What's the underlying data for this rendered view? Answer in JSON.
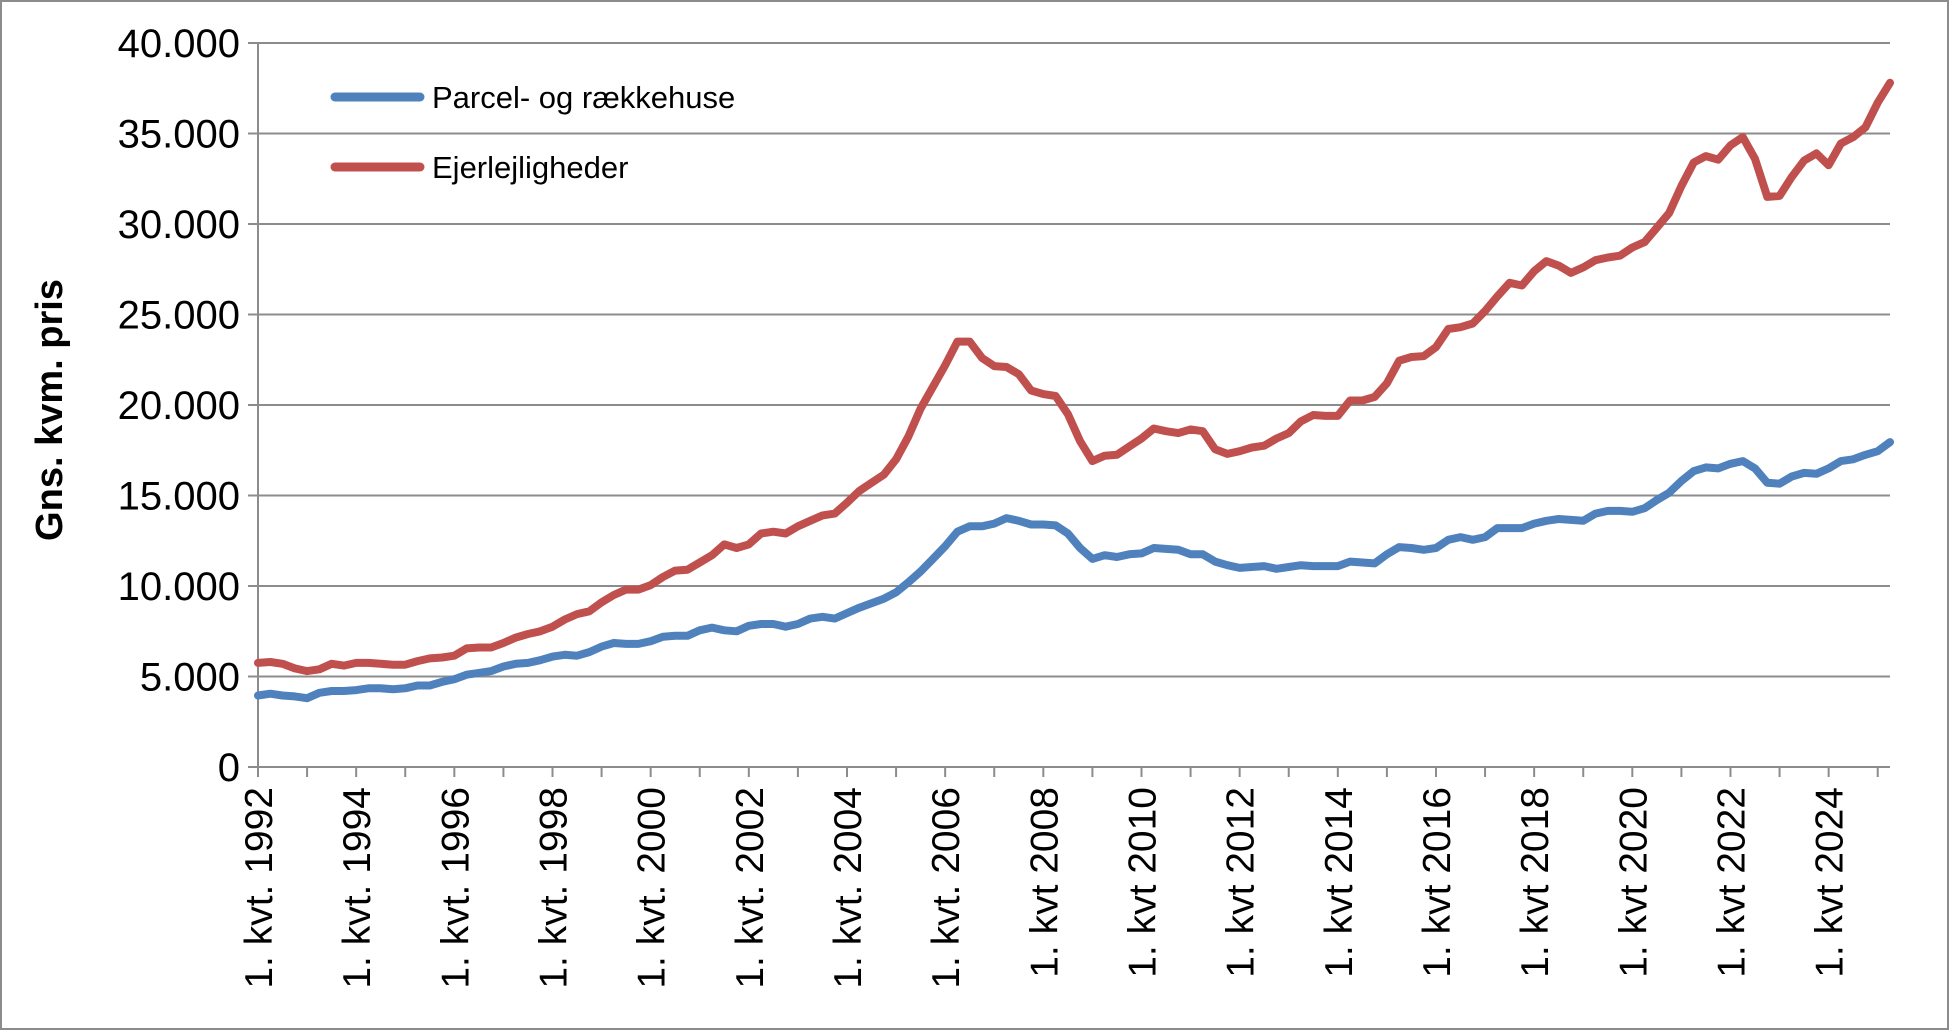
{
  "chart_data": {
    "type": "line",
    "title": "",
    "xlabel": "",
    "ylabel": "Gns. kvm. pris",
    "ylim": [
      0,
      40000
    ],
    "y_ticks": [
      0,
      5000,
      10000,
      15000,
      20000,
      25000,
      30000,
      35000,
      40000
    ],
    "y_tick_labels": [
      "0",
      "5.000",
      "10.000",
      "15.000",
      "20.000",
      "25.000",
      "30.000",
      "35.000",
      "40.000"
    ],
    "grid": true,
    "legend_position": "top-left",
    "x_start": "1. kvt. 1992",
    "x_tick_labels": [
      "1. kvt. 1992",
      "1. kvt. 1994",
      "1. kvt. 1996",
      "1. kvt. 1998",
      "1. kvt. 2000",
      "1. kvt. 2002",
      "1. kvt. 2004",
      "1. kvt. 2006",
      "1. kvt 2008",
      "1. kvt 2010",
      "1. kvt 2012",
      "1. kvt 2014",
      "1. kvt 2016",
      "1. kvt 2018",
      "1. kvt 2020",
      "1. kvt 2022",
      "1. kvt 2024"
    ],
    "series": [
      {
        "name": "Parcel- og rækkehuse",
        "color": "#4F81BD",
        "values": [
          3950,
          4050,
          3950,
          3900,
          3800,
          4100,
          4200,
          4200,
          4250,
          4350,
          4350,
          4300,
          4350,
          4500,
          4500,
          4700,
          4850,
          5100,
          5200,
          5300,
          5550,
          5700,
          5750,
          5900,
          6100,
          6200,
          6150,
          6350,
          6650,
          6850,
          6800,
          6800,
          6950,
          7200,
          7250,
          7250,
          7550,
          7700,
          7550,
          7500,
          7800,
          7900,
          7900,
          7750,
          7900,
          8200,
          8300,
          8200,
          8500,
          8800,
          9050,
          9300,
          9650,
          10200,
          10800,
          11500,
          12200,
          13000,
          13300,
          13300,
          13450,
          13750,
          13600,
          13400,
          13400,
          13350,
          12900,
          12100,
          11500,
          11700,
          11600,
          11750,
          11800,
          12100,
          12050,
          12000,
          11750,
          11750,
          11350,
          11150,
          11000,
          11050,
          11100,
          10950,
          11050,
          11150,
          11100,
          11100,
          11100,
          11350,
          11300,
          11250,
          11750,
          12150,
          12100,
          12000,
          12100,
          12550,
          12700,
          12550,
          12700,
          13200,
          13200,
          13200,
          13450,
          13600,
          13700,
          13650,
          13600,
          14000,
          14150,
          14150,
          14100,
          14300,
          14750,
          15150,
          15800,
          16350,
          16550,
          16500,
          16750,
          16900,
          16500,
          15700,
          15650,
          16050,
          16250,
          16200,
          16500,
          16900,
          17000,
          17250,
          17450,
          17950
        ]
      },
      {
        "name": "Ejerlejligheder",
        "color": "#C0504D",
        "values": [
          5750,
          5800,
          5700,
          5450,
          5300,
          5400,
          5700,
          5600,
          5750,
          5750,
          5700,
          5650,
          5650,
          5850,
          6000,
          6050,
          6150,
          6550,
          6600,
          6600,
          6850,
          7150,
          7350,
          7500,
          7750,
          8150,
          8450,
          8600,
          9100,
          9500,
          9800,
          9800,
          10050,
          10500,
          10850,
          10900,
          11300,
          11700,
          12300,
          12100,
          12300,
          12900,
          13000,
          12900,
          13300,
          13600,
          13900,
          14000,
          14600,
          15250,
          15700,
          16150,
          17000,
          18250,
          19800,
          21000,
          22200,
          23500,
          23500,
          22600,
          22150,
          22100,
          21700,
          20800,
          20600,
          20500,
          19500,
          18000,
          16900,
          17200,
          17250,
          17700,
          18150,
          18700,
          18550,
          18450,
          18650,
          18550,
          17550,
          17300,
          17450,
          17650,
          17750,
          18150,
          18450,
          19100,
          19450,
          19400,
          19400,
          20250,
          20250,
          20450,
          21200,
          22450,
          22650,
          22700,
          23200,
          24200,
          24300,
          24500,
          25200,
          26000,
          26750,
          26600,
          27400,
          27950,
          27700,
          27300,
          27600,
          28000,
          28150,
          28250,
          28700,
          29000,
          29800,
          30600,
          32100,
          33400,
          33750,
          33550,
          34350,
          34800,
          33600,
          31500,
          31550,
          32600,
          33500,
          33900,
          33250,
          34450,
          34800,
          35350,
          36700,
          37800
        ]
      }
    ]
  }
}
